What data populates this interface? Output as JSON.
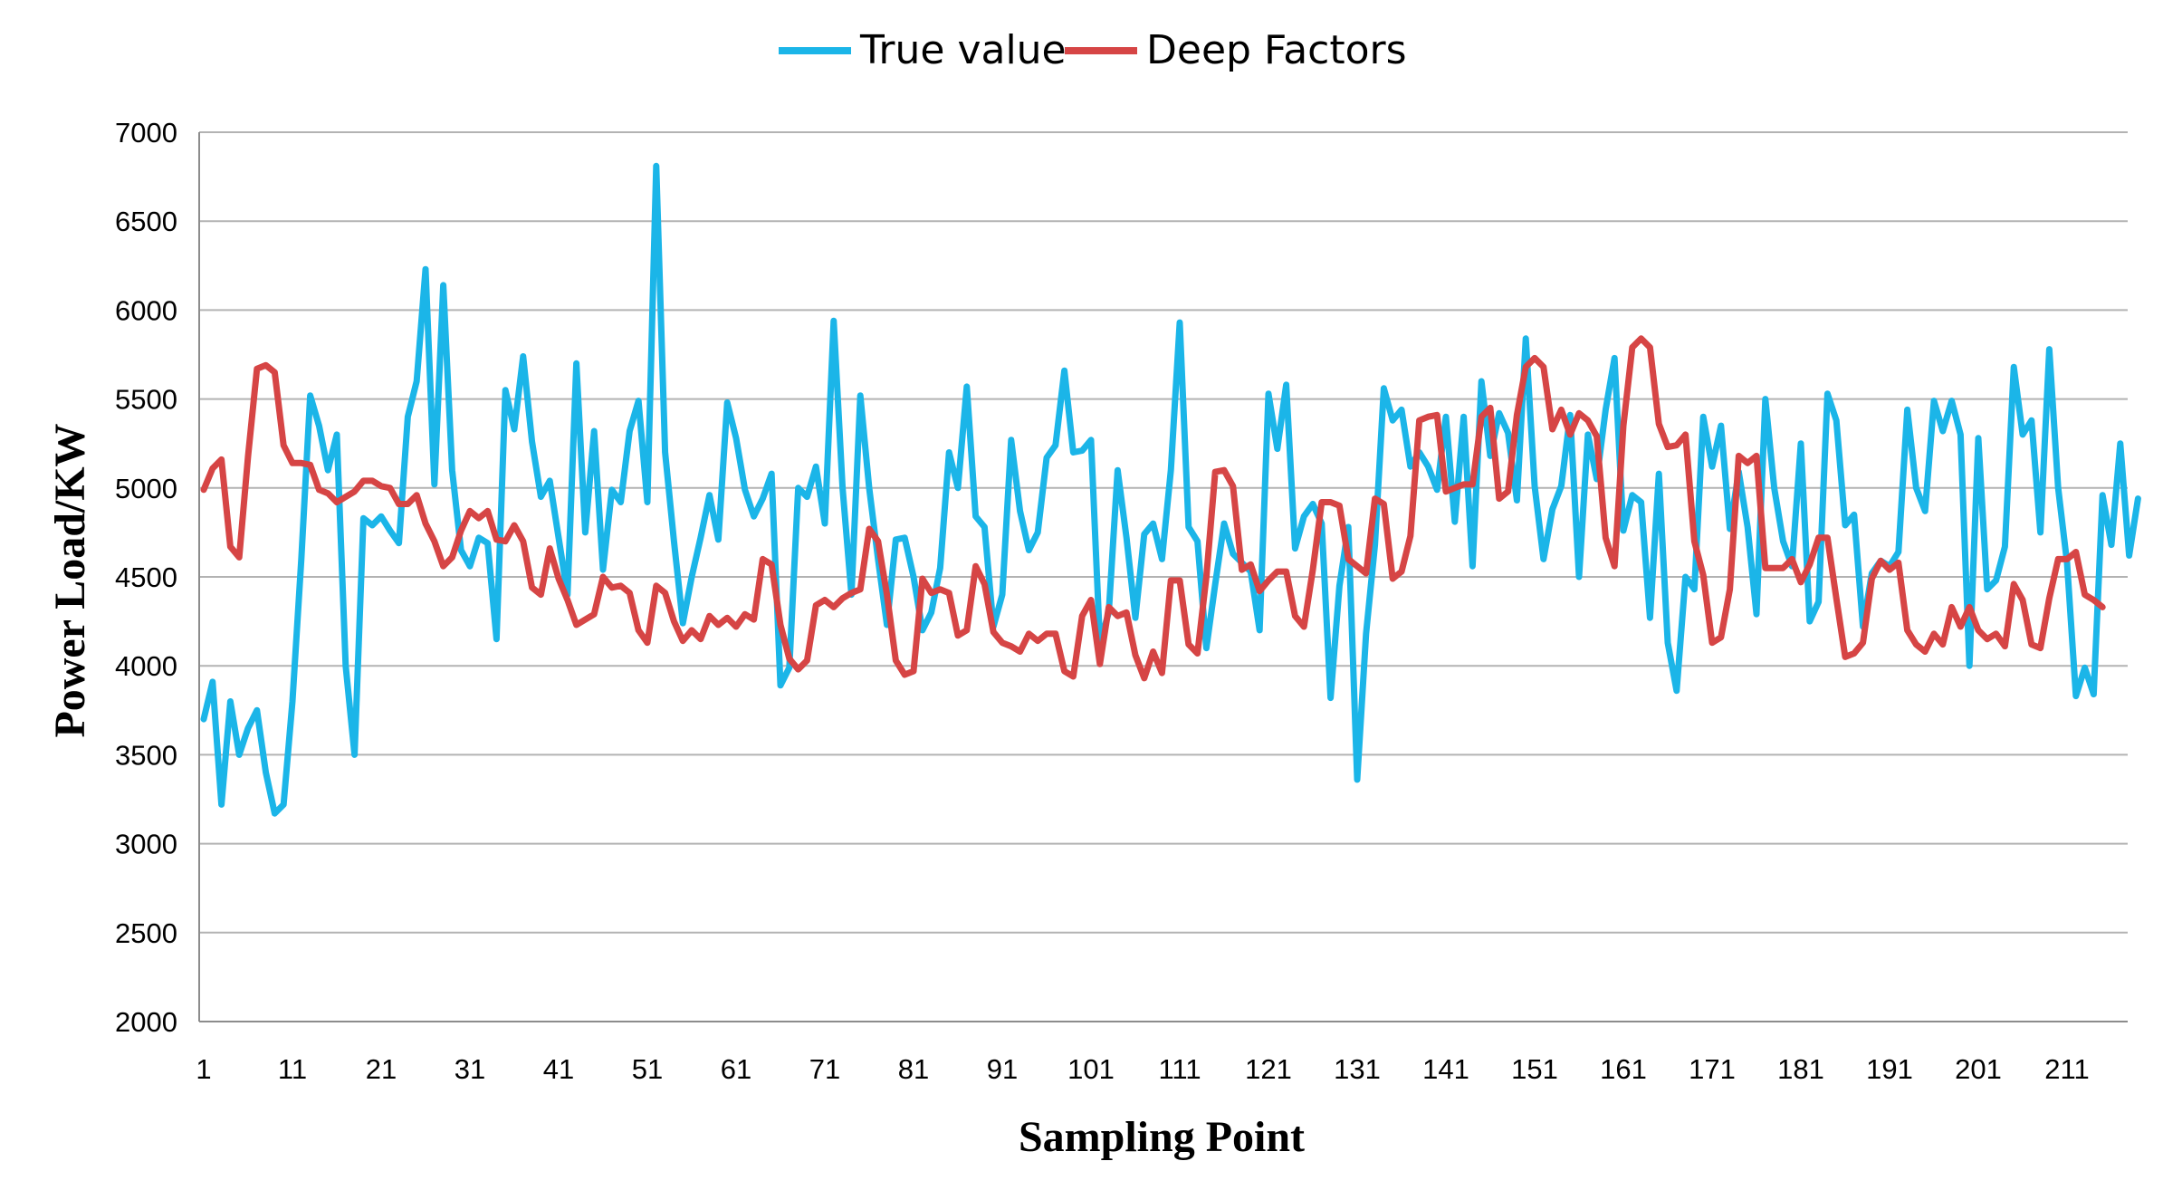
{
  "chart_data": {
    "type": "line",
    "title": "",
    "xlabel": "Sampling Point",
    "ylabel": "Power Load/KW",
    "ylim": [
      2000,
      7000
    ],
    "yticks": [
      2000,
      2500,
      3000,
      3500,
      4000,
      4500,
      5000,
      5500,
      6000,
      6500,
      7000
    ],
    "xlim": [
      1,
      216
    ],
    "xticks": [
      1,
      11,
      21,
      31,
      41,
      51,
      61,
      71,
      81,
      91,
      101,
      111,
      121,
      131,
      141,
      151,
      161,
      171,
      181,
      191,
      201,
      211
    ],
    "grid": true,
    "legend_position": "top-center",
    "series": [
      {
        "name": "True value",
        "color": "#1BB5E8",
        "values": [
          3700,
          3910,
          3220,
          3800,
          3500,
          3650,
          3750,
          3400,
          3170,
          3220,
          3800,
          4600,
          5520,
          5350,
          5100,
          5300,
          4000,
          3500,
          4830,
          4790,
          4840,
          4760,
          4690,
          5400,
          5600,
          6230,
          5020,
          6140,
          5100,
          4650,
          4560,
          4720,
          4690,
          4150,
          5550,
          5330,
          5740,
          5260,
          4950,
          5040,
          4720,
          4400,
          5700,
          4750,
          5320,
          4540,
          4990,
          4920,
          5320,
          5490,
          4920,
          6810,
          5200,
          4700,
          4240,
          4500,
          4720,
          4960,
          4710,
          5480,
          5280,
          4990,
          4840,
          4940,
          5080,
          3890,
          3990,
          5000,
          4950,
          5120,
          4800,
          5940,
          5000,
          4400,
          5520,
          5000,
          4600,
          4230,
          4710,
          4720,
          4500,
          4200,
          4300,
          4550,
          5200,
          5000,
          5570,
          4840,
          4780,
          4220,
          4400,
          5270,
          4870,
          4650,
          4750,
          5170,
          5240,
          5660,
          5200,
          5210,
          5270,
          4130,
          4300,
          5100,
          4720,
          4270,
          4740,
          4800,
          4600,
          5100,
          5930,
          4780,
          4700,
          4100,
          4460,
          4800,
          4630,
          4580,
          4530,
          4200,
          5530,
          5220,
          5580,
          4660,
          4840,
          4910,
          4800,
          3820,
          4450,
          4780,
          3360,
          4180,
          4680,
          5560,
          5380,
          5440,
          5120,
          5200,
          5120,
          4990,
          5400,
          4810,
          5400,
          4560,
          5600,
          5180,
          5420,
          5310,
          4930,
          5840,
          5010,
          4600,
          4880,
          5010,
          5410,
          4500,
          5300,
          5050,
          5440,
          5730,
          4760,
          4960,
          4920,
          4270,
          5080,
          4130,
          3860,
          4500,
          4430,
          5400,
          5120,
          5350,
          4770,
          5090,
          4780,
          4290,
          5500,
          5000,
          4700,
          4560,
          5250,
          4250,
          4360,
          5530,
          5380,
          4790,
          4850,
          4220,
          4520,
          4590,
          4560,
          4640,
          5440,
          5000,
          4870,
          5490,
          5320,
          5490,
          5300,
          4000,
          5280,
          4430,
          4480,
          4670,
          5680,
          5300,
          5380,
          4750,
          5780,
          5000,
          4580,
          3830,
          3990,
          3840,
          4960,
          4680,
          5250,
          4620,
          4940
        ]
      },
      {
        "name": "Deep Factors",
        "color": "#D64545",
        "values": [
          4990,
          5110,
          5160,
          4670,
          4610,
          5180,
          5670,
          5690,
          5650,
          5240,
          5140,
          5140,
          5130,
          4990,
          4970,
          4920,
          4950,
          4980,
          5040,
          5040,
          5010,
          5000,
          4910,
          4910,
          4960,
          4800,
          4700,
          4560,
          4610,
          4760,
          4870,
          4830,
          4870,
          4710,
          4700,
          4790,
          4700,
          4440,
          4400,
          4660,
          4490,
          4370,
          4230,
          4260,
          4290,
          4500,
          4440,
          4450,
          4410,
          4200,
          4130,
          4450,
          4410,
          4250,
          4140,
          4200,
          4150,
          4280,
          4230,
          4270,
          4220,
          4290,
          4260,
          4600,
          4570,
          4230,
          4040,
          3980,
          4030,
          4340,
          4370,
          4330,
          4380,
          4410,
          4430,
          4770,
          4700,
          4400,
          4030,
          3950,
          3970,
          4490,
          4410,
          4430,
          4410,
          4170,
          4200,
          4560,
          4460,
          4190,
          4130,
          4110,
          4080,
          4180,
          4140,
          4180,
          4180,
          3970,
          3940,
          4280,
          4370,
          4010,
          4330,
          4280,
          4300,
          4060,
          3930,
          4080,
          3960,
          4480,
          4480,
          4120,
          4070,
          4500,
          5090,
          5100,
          5010,
          4540,
          4570,
          4420,
          4480,
          4530,
          4530,
          4280,
          4220,
          4540,
          4920,
          4920,
          4900,
          4600,
          4560,
          4520,
          4940,
          4910,
          4490,
          4530,
          4730,
          5380,
          5400,
          5410,
          4980,
          5000,
          5020,
          5020,
          5400,
          5450,
          4940,
          4980,
          5410,
          5680,
          5730,
          5680,
          5330,
          5440,
          5300,
          5420,
          5380,
          5290,
          4720,
          4560,
          5350,
          5790,
          5840,
          5790,
          5360,
          5230,
          5240,
          5300,
          4700,
          4510,
          4130,
          4160,
          4430,
          5180,
          5140,
          5180,
          4550,
          4550,
          4550,
          4600,
          4470,
          4570,
          4720,
          4720,
          4380,
          4050,
          4070,
          4130,
          4490,
          4590,
          4540,
          4580,
          4200,
          4120,
          4080,
          4180,
          4120,
          4330,
          4220,
          4330,
          4200,
          4150,
          4180,
          4110,
          4460,
          4370,
          4120,
          4100,
          4380,
          4600,
          4600,
          4640,
          4400,
          4370,
          4330
        ]
      }
    ]
  }
}
